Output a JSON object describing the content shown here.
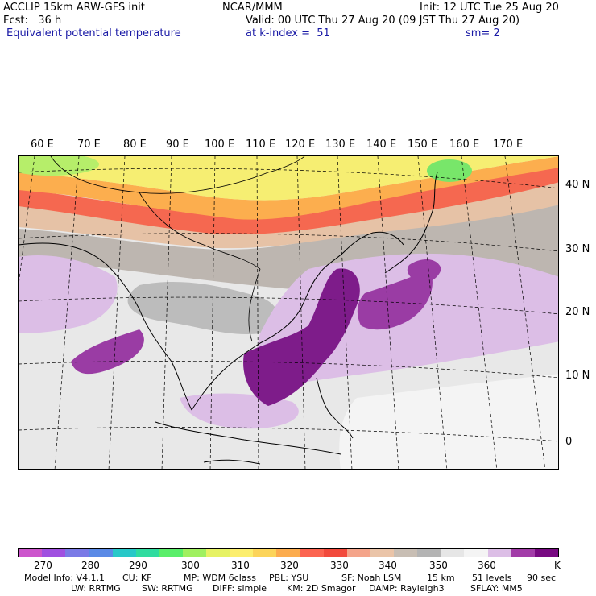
{
  "header": {
    "line1_left": "ACCLIP 15km ARW-GFS init",
    "line1_center": "NCAR/MMM",
    "line1_right": "Init: 12 UTC Tue 25 Aug 20",
    "line2_left": "Fcst:   36 h",
    "line2_right": "Valid: 00 UTC Thu 27 Aug 20 (09 JST Thu 27 Aug 20)",
    "line3_field": "Equivalent potential temperature",
    "line3_level": "at k-index =  51",
    "line3_smooth": "sm= 2"
  },
  "map": {
    "lon_labels": [
      "60 E",
      "70 E",
      "80 E",
      "90 E",
      "100 E",
      "110 E",
      "120 E",
      "130 E",
      "140 E",
      "150 E",
      "160 E",
      "170 E"
    ],
    "lat_labels": [
      "40 N",
      "30 N",
      "20 N",
      "10 N",
      "0"
    ]
  },
  "colorbar": {
    "colors": [
      "#cc55cc",
      "#a050e0",
      "#7a7ae6",
      "#5a8ae6",
      "#28c8c8",
      "#30dca0",
      "#5aee6a",
      "#a0f060",
      "#e6f264",
      "#fcee6e",
      "#fcd45a",
      "#fcac4e",
      "#fc6450",
      "#f24a3c",
      "#f4a48a",
      "#eac4a8",
      "#c8beb4",
      "#b4b4b4",
      "#e6e6e6",
      "#f4f4f4",
      "#dcbee6",
      "#a23ca8",
      "#780a82"
    ],
    "labels": [
      "270",
      "280",
      "290",
      "300",
      "310",
      "320",
      "330",
      "340",
      "350",
      "360",
      "K"
    ]
  },
  "footer": {
    "line1": [
      "Model Info: V4.1.1",
      "CU: KF",
      "MP: WDM 6class",
      "PBL: YSU",
      "SF: Noah LSM",
      "15 km",
      "51 levels",
      "90 sec"
    ],
    "line2": [
      "LW: RRTMG",
      "SW: RRTMG",
      "DIFF: simple",
      "KM: 2D Smagor",
      "DAMP: Rayleigh3",
      "SFLAY: MM5"
    ]
  }
}
